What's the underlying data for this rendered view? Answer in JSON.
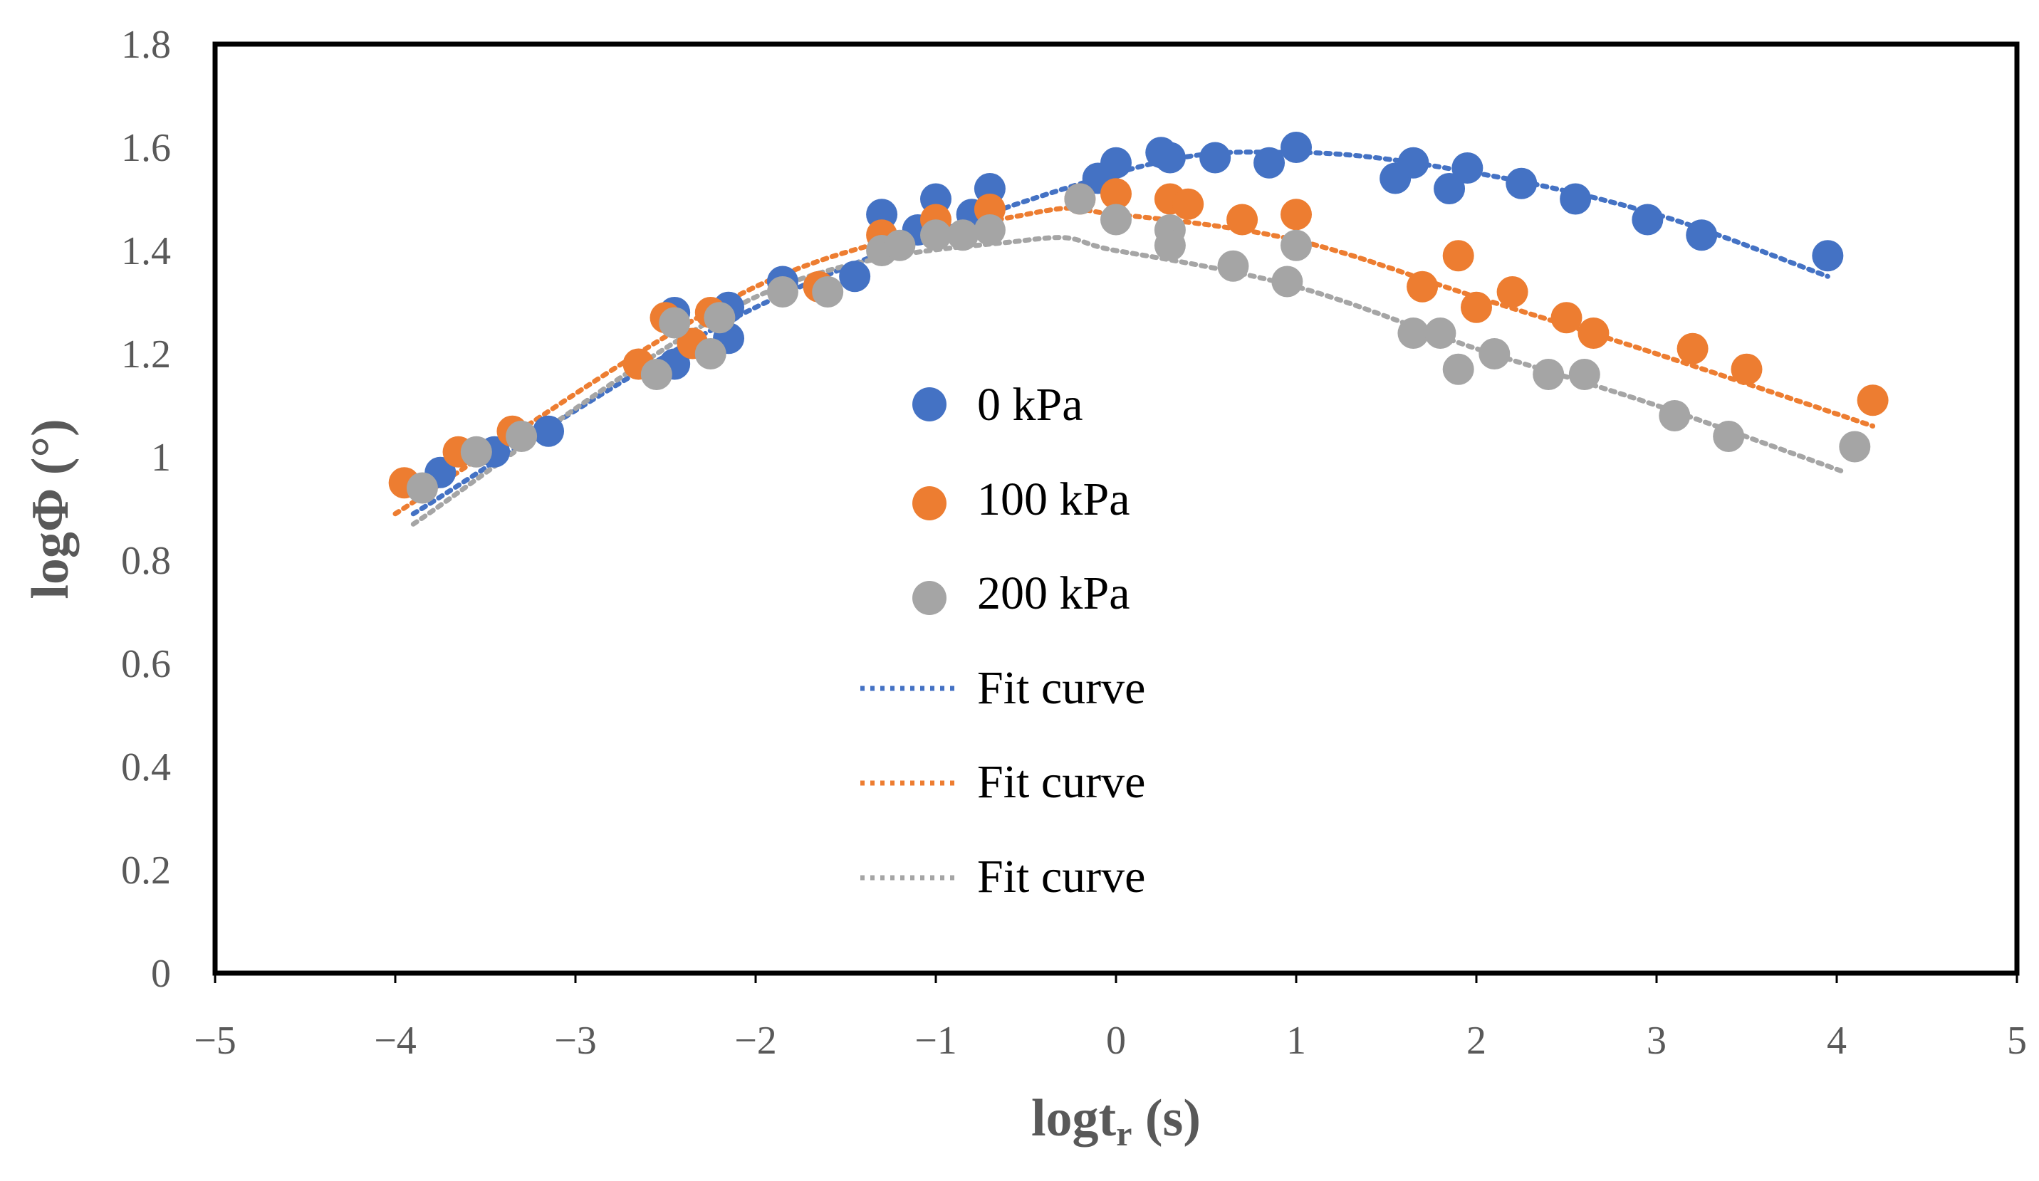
{
  "chart_data": {
    "type": "scatter",
    "title": "",
    "xlabel": "logt",
    "xlabel_sub": "r",
    "xlabel_unit": " (s)",
    "ylabel": "logΦ (°)",
    "xlim": [
      -5,
      5
    ],
    "ylim": [
      0,
      1.8
    ],
    "x_ticks": [
      "−5",
      "−4",
      "−3",
      "−2",
      "−1",
      "0",
      "1",
      "2",
      "3",
      "4",
      "5"
    ],
    "y_ticks": [
      "0",
      "0.2",
      "0.4",
      "0.6",
      "0.8",
      "1",
      "1.2",
      "1.4",
      "1.6",
      "1.8"
    ],
    "grid": false,
    "legend_position": "center-left",
    "series": [
      {
        "name": "0 kPa",
        "color": "#4472C4",
        "points": [
          [
            -3.75,
            0.97
          ],
          [
            -3.45,
            1.01
          ],
          [
            -3.15,
            1.05
          ],
          [
            -2.45,
            1.28
          ],
          [
            -2.45,
            1.18
          ],
          [
            -2.15,
            1.29
          ],
          [
            -2.15,
            1.23
          ],
          [
            -1.85,
            1.34
          ],
          [
            -1.45,
            1.35
          ],
          [
            -1.3,
            1.47
          ],
          [
            -1.1,
            1.44
          ],
          [
            -1.0,
            1.5
          ],
          [
            -0.8,
            1.47
          ],
          [
            -0.7,
            1.52
          ],
          [
            -0.1,
            1.54
          ],
          [
            0.0,
            1.57
          ],
          [
            0.25,
            1.59
          ],
          [
            0.3,
            1.58
          ],
          [
            0.55,
            1.58
          ],
          [
            0.85,
            1.57
          ],
          [
            1.0,
            1.6
          ],
          [
            1.55,
            1.54
          ],
          [
            1.65,
            1.57
          ],
          [
            1.85,
            1.52
          ],
          [
            1.95,
            1.56
          ],
          [
            2.25,
            1.53
          ],
          [
            2.55,
            1.5
          ],
          [
            2.95,
            1.46
          ],
          [
            3.25,
            1.43
          ],
          [
            3.95,
            1.39
          ]
        ]
      },
      {
        "name": "100 kPa",
        "color": "#ED7D31",
        "points": [
          [
            -3.95,
            0.95
          ],
          [
            -3.65,
            1.01
          ],
          [
            -3.35,
            1.05
          ],
          [
            -2.65,
            1.18
          ],
          [
            -2.5,
            1.27
          ],
          [
            -2.35,
            1.22
          ],
          [
            -2.25,
            1.28
          ],
          [
            -1.65,
            1.33
          ],
          [
            -1.3,
            1.43
          ],
          [
            -1.0,
            1.46
          ],
          [
            -0.7,
            1.48
          ],
          [
            -0.2,
            1.5
          ],
          [
            0.0,
            1.51
          ],
          [
            0.3,
            1.5
          ],
          [
            0.4,
            1.49
          ],
          [
            0.7,
            1.46
          ],
          [
            1.0,
            1.47
          ],
          [
            1.7,
            1.33
          ],
          [
            1.9,
            1.39
          ],
          [
            2.0,
            1.29
          ],
          [
            2.2,
            1.32
          ],
          [
            2.5,
            1.27
          ],
          [
            2.65,
            1.24
          ],
          [
            3.2,
            1.21
          ],
          [
            3.5,
            1.17
          ],
          [
            4.2,
            1.11
          ]
        ]
      },
      {
        "name": "200 kPa",
        "color": "#A5A5A5",
        "points": [
          [
            -3.85,
            0.94
          ],
          [
            -3.55,
            1.01
          ],
          [
            -3.3,
            1.04
          ],
          [
            -2.55,
            1.16
          ],
          [
            -2.45,
            1.26
          ],
          [
            -2.25,
            1.2
          ],
          [
            -2.2,
            1.27
          ],
          [
            -1.85,
            1.32
          ],
          [
            -1.6,
            1.32
          ],
          [
            -1.3,
            1.4
          ],
          [
            -1.2,
            1.41
          ],
          [
            -1.0,
            1.43
          ],
          [
            -0.85,
            1.43
          ],
          [
            -0.7,
            1.44
          ],
          [
            -0.2,
            1.5
          ],
          [
            0.0,
            1.46
          ],
          [
            0.3,
            1.44
          ],
          [
            0.3,
            1.41
          ],
          [
            0.65,
            1.37
          ],
          [
            0.95,
            1.34
          ],
          [
            1.0,
            1.41
          ],
          [
            1.65,
            1.24
          ],
          [
            1.8,
            1.24
          ],
          [
            1.9,
            1.17
          ],
          [
            2.1,
            1.2
          ],
          [
            2.4,
            1.16
          ],
          [
            2.6,
            1.16
          ],
          [
            3.1,
            1.08
          ],
          [
            3.4,
            1.04
          ],
          [
            4.1,
            1.02
          ]
        ]
      }
    ],
    "fit_curves": [
      {
        "name": "Fit curve",
        "color": "#4472C4",
        "x_range": [
          -3.9,
          3.95
        ],
        "points": [
          [
            -3.9,
            0.89
          ],
          [
            -2.0,
            1.29
          ],
          [
            0.0,
            1.55
          ],
          [
            1.0,
            1.59
          ],
          [
            2.0,
            1.55
          ],
          [
            3.0,
            1.47
          ],
          [
            3.95,
            1.35
          ]
        ]
      },
      {
        "name": "Fit curve",
        "color": "#ED7D31",
        "x_range": [
          -4.0,
          4.2
        ],
        "points": [
          [
            -4.0,
            0.89
          ],
          [
            -2.0,
            1.33
          ],
          [
            -0.5,
            1.47
          ],
          [
            0.0,
            1.47
          ],
          [
            1.0,
            1.42
          ],
          [
            2.0,
            1.31
          ],
          [
            3.0,
            1.2
          ],
          [
            4.2,
            1.06
          ]
        ]
      },
      {
        "name": "Fit curve",
        "color": "#A5A5A5",
        "x_range": [
          -3.9,
          4.05
        ],
        "points": [
          [
            -3.9,
            0.87
          ],
          [
            -2.0,
            1.31
          ],
          [
            -0.5,
            1.42
          ],
          [
            0.0,
            1.4
          ],
          [
            1.0,
            1.33
          ],
          [
            2.0,
            1.21
          ],
          [
            3.0,
            1.1
          ],
          [
            4.05,
            0.97
          ]
        ]
      }
    ]
  }
}
